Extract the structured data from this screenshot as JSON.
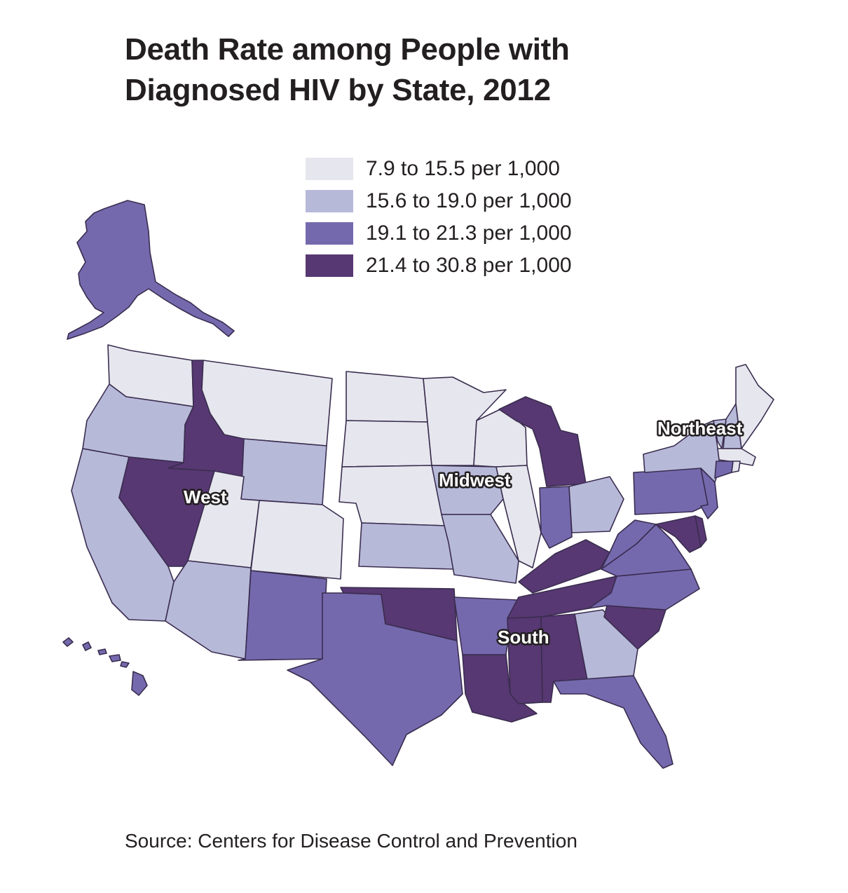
{
  "title": "Death Rate among People with Diagnosed HIV by State, 2012",
  "legend": [
    {
      "label": "7.9 to 15.5 per 1,000",
      "color": "#e6e7ee"
    },
    {
      "label": "15.6 to 19.0 per 1,000",
      "color": "#b7b9d9"
    },
    {
      "label": "19.1 to 21.3 per 1,000",
      "color": "#7569ae"
    },
    {
      "label": "21.4 to 30.8 per 1,000",
      "color": "#573872"
    }
  ],
  "regions": {
    "west": "West",
    "midwest": "Midwest",
    "northeast": "Northeast",
    "south": "South"
  },
  "states": {
    "AK": 2,
    "HI": 2,
    "WA": 0,
    "OR": 1,
    "CA": 1,
    "ID": 3,
    "NV": 3,
    "MT": 0,
    "WY": 1,
    "UT": 0,
    "CO": 0,
    "AZ": 1,
    "NM": 2,
    "ND": 0,
    "SD": 0,
    "NE": 0,
    "KS": 1,
    "MN": 0,
    "IA": 1,
    "MO": 1,
    "WI": 0,
    "IL": 0,
    "MI": 3,
    "IN": 2,
    "OH": 1,
    "ME": 0,
    "NH": 1,
    "VT": 1,
    "MA": 0,
    "RI": 0,
    "CT": 2,
    "NY": 1,
    "NJ": 2,
    "PA": 2,
    "TX": 2,
    "OK": 3,
    "AR": 2,
    "LA": 3,
    "MS": 3,
    "AL": 3,
    "TN": 3,
    "KY": 3,
    "FL": 2,
    "GA": 1,
    "SC": 3,
    "NC": 2,
    "VA": 2,
    "WV": 2,
    "MD": 3,
    "DE": 3
  },
  "source": "Source: Centers for Disease Control and Prevention"
}
